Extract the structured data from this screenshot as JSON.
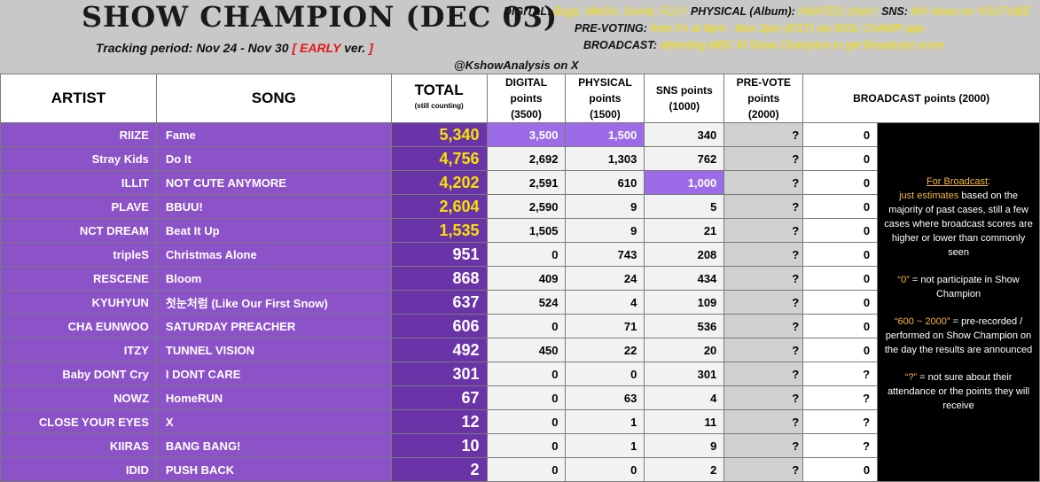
{
  "header": {
    "title": "SHOW CHAMPION (DEC 03)",
    "tracking_label": "Tracking period: Nov 24 - Nov 30",
    "tracking_bracket_open": "[",
    "tracking_early": "EARLY",
    "tracking_ver": "ver.",
    "tracking_bracket_close": "]",
    "credit": "@KshowAnalysis on X",
    "digital_label": "DIGITAL:",
    "digital_value": "Bugs, MelOn, Genie, FLO /",
    "physical_label": "PHYSICAL (Album):",
    "physical_value": "HANTEO chart /",
    "sns_label": "SNS:",
    "sns_value": "MV views on YOUTUBE",
    "prevoting_label": "PRE-VOTING:",
    "prevoting_value": "from Fri at 8pm - Mon 2pm (KST) via IDOL CHAMP app",
    "broadcast_label": "BROADCAST:",
    "broadcast_value": "attending MBC M Show Champion to get Broadcast score"
  },
  "columns": {
    "artist": "ARTIST",
    "song": "SONG",
    "total": "TOTAL",
    "total_sub": "(still counting)",
    "digital_1": "DIGITAL",
    "digital_2": "points",
    "digital_3": "(3500)",
    "physical_1": "PHYSICAL",
    "physical_2": "points",
    "physical_3": "(1500)",
    "sns_1": "SNS points",
    "sns_2": "(1000)",
    "prevote_1": "PRE-VOTE",
    "prevote_2": "points",
    "prevote_3": "(2000)",
    "broadcast": "BROADCAST points (2000)"
  },
  "rows": [
    {
      "artist": "RIIZE",
      "song": "Fame",
      "total": "5,340",
      "digital": "3,500",
      "physical": "1,500",
      "sns": "340",
      "prevote": "?",
      "broadcast": "0"
    },
    {
      "artist": "Stray Kids",
      "song": "Do It",
      "total": "4,756",
      "digital": "2,692",
      "physical": "1,303",
      "sns": "762",
      "prevote": "?",
      "broadcast": "0"
    },
    {
      "artist": "ILLIT",
      "song": "NOT CUTE ANYMORE",
      "total": "4,202",
      "digital": "2,591",
      "physical": "610",
      "sns": "1,000",
      "prevote": "?",
      "broadcast": "0"
    },
    {
      "artist": "PLAVE",
      "song": "BBUU!",
      "total": "2,604",
      "digital": "2,590",
      "physical": "9",
      "sns": "5",
      "prevote": "?",
      "broadcast": "0"
    },
    {
      "artist": "NCT DREAM",
      "song": "Beat It Up",
      "total": "1,535",
      "digital": "1,505",
      "physical": "9",
      "sns": "21",
      "prevote": "?",
      "broadcast": "0"
    },
    {
      "artist": "tripleS",
      "song": "Christmas Alone",
      "total": "951",
      "digital": "0",
      "physical": "743",
      "sns": "208",
      "prevote": "?",
      "broadcast": "0"
    },
    {
      "artist": "RESCENE",
      "song": "Bloom",
      "total": "868",
      "digital": "409",
      "physical": "24",
      "sns": "434",
      "prevote": "?",
      "broadcast": "0"
    },
    {
      "artist": "KYUHYUN",
      "song": "첫눈처럼 (Like Our First Snow)",
      "total": "637",
      "digital": "524",
      "physical": "4",
      "sns": "109",
      "prevote": "?",
      "broadcast": "0"
    },
    {
      "artist": "CHA EUNWOO",
      "song": "SATURDAY PREACHER",
      "total": "606",
      "digital": "0",
      "physical": "71",
      "sns": "536",
      "prevote": "?",
      "broadcast": "0"
    },
    {
      "artist": "ITZY",
      "song": "TUNNEL VISION",
      "total": "492",
      "digital": "450",
      "physical": "22",
      "sns": "20",
      "prevote": "?",
      "broadcast": "0"
    },
    {
      "artist": "Baby DONT Cry",
      "song": "I DONT CARE",
      "total": "301",
      "digital": "0",
      "physical": "0",
      "sns": "301",
      "prevote": "?",
      "broadcast": "?"
    },
    {
      "artist": "NOWZ",
      "song": "HomeRUN",
      "total": "67",
      "digital": "0",
      "physical": "63",
      "sns": "4",
      "prevote": "?",
      "broadcast": "?"
    },
    {
      "artist": "CLOSE YOUR EYES",
      "song": "X",
      "total": "12",
      "digital": "0",
      "physical": "1",
      "sns": "11",
      "prevote": "?",
      "broadcast": "?"
    },
    {
      "artist": "KIIRAS",
      "song": "BANG BANG!",
      "total": "10",
      "digital": "0",
      "physical": "1",
      "sns": "9",
      "prevote": "?",
      "broadcast": "?"
    },
    {
      "artist": "IDID",
      "song": "PUSH BACK",
      "total": "2",
      "digital": "0",
      "physical": "0",
      "sns": "2",
      "prevote": "?",
      "broadcast": "0"
    }
  ],
  "highlights": {
    "gold_total_rows": [
      0,
      1,
      2,
      3,
      4
    ],
    "max_digital_row": 0,
    "max_physical_row": 0,
    "max_sns_row": 2
  },
  "sidebar": {
    "for_broadcast": "For Broadcast",
    "colon": ":",
    "estimates_hl": "just estimates",
    "estimates_rest": "based on the majority of past cases, still a few cases where broadcast scores are higher or lower than commonly seen",
    "zero_hl": "“0”",
    "zero_rest": "= not participate in Show Champion",
    "range_hl": "“600 ~ 2000”",
    "range_rest": "= pre-recorded / performed on Show Champion on the day the results are announced",
    "q_hl": "“?”",
    "q_rest": "= not sure about their attendance or the points they will receive"
  },
  "colors": {
    "header_bg": "#c8c8c8",
    "purple": "#8c52c8",
    "dark_purple": "#6a33a8",
    "gold": "#f7e200",
    "highlight": "#9b6be8",
    "red": "#e8141b",
    "orange": "#f5b942"
  }
}
